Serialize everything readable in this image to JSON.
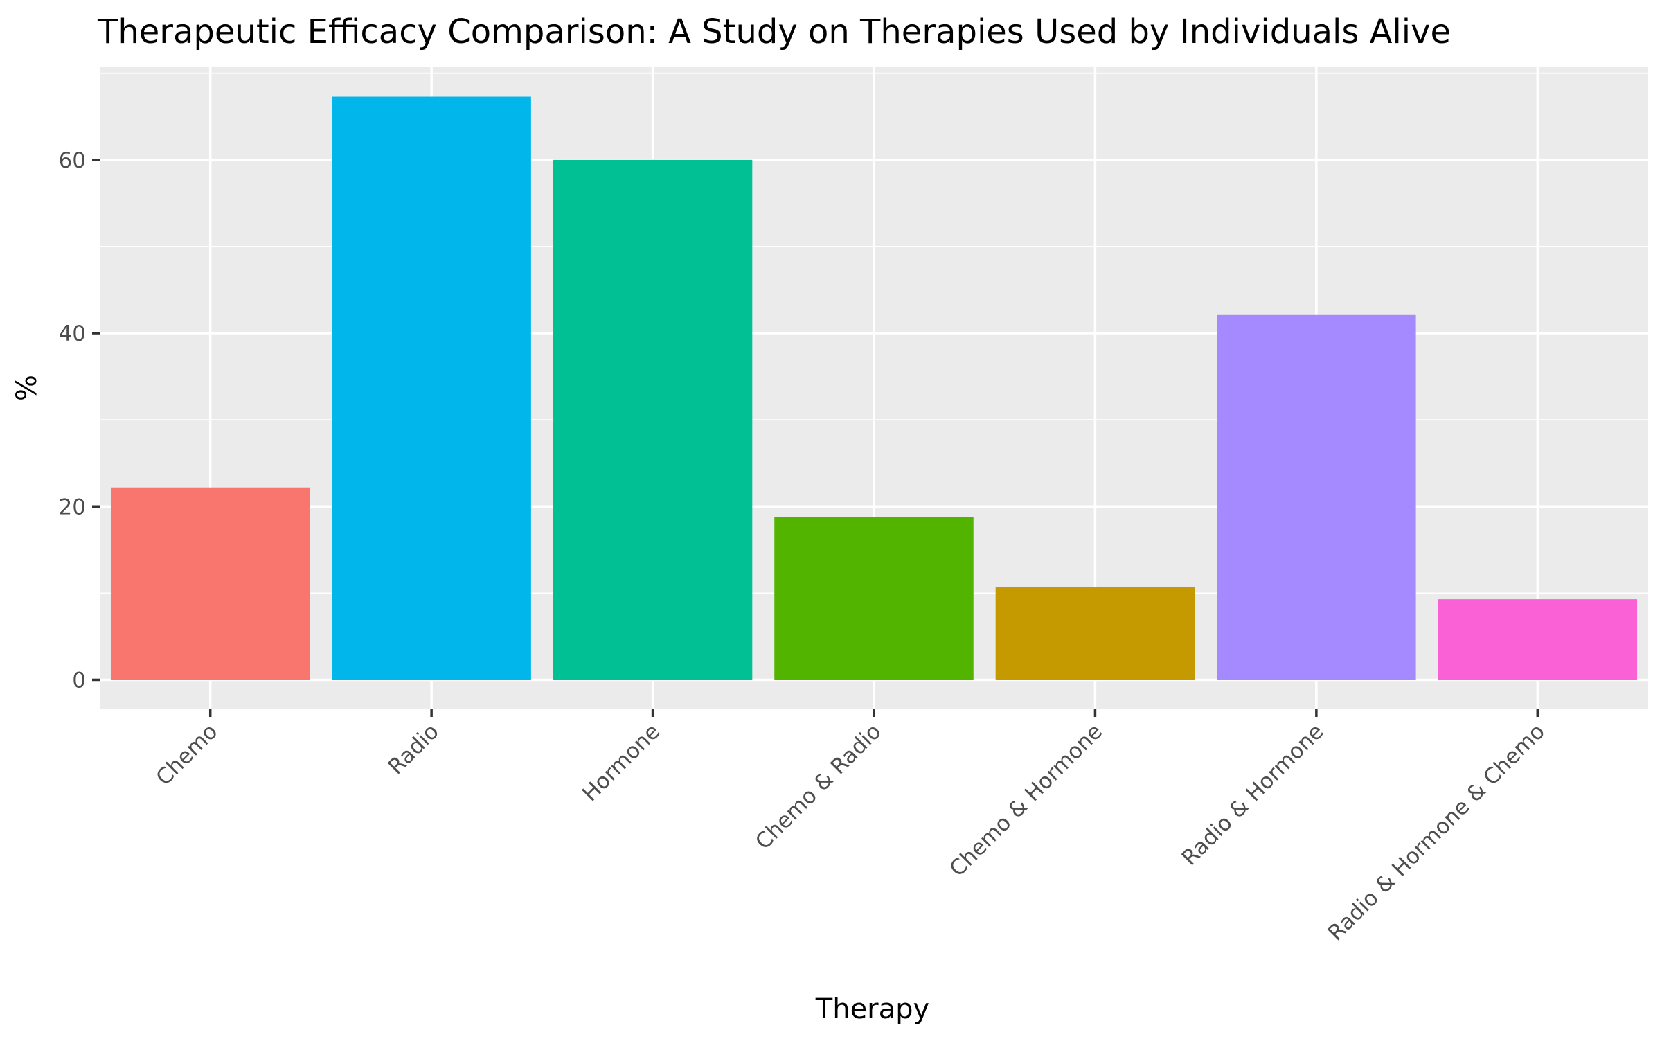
{
  "chart_data": {
    "type": "bar",
    "title": "Therapeutic Efficacy Comparison: A Study on Therapies Used by Individuals Alive",
    "xlabel": "Therapy",
    "ylabel": "%",
    "categories": [
      "Chemo",
      "Radio",
      "Hormone",
      "Chemo & Radio",
      "Chemo & Hormone",
      "Radio & Hormone",
      "Radio & Hormone & Chemo"
    ],
    "values": [
      22.2,
      67.3,
      60.0,
      18.8,
      10.7,
      42.1,
      9.3
    ],
    "colors": [
      "#F8766D",
      "#00B6EB",
      "#00C094",
      "#53B400",
      "#C49A00",
      "#A58AFF",
      "#FB61D7"
    ],
    "yticks": [
      0,
      20,
      40,
      60
    ],
    "ylim": [
      -3.4,
      70.7
    ],
    "grid": true,
    "legend": "none"
  }
}
